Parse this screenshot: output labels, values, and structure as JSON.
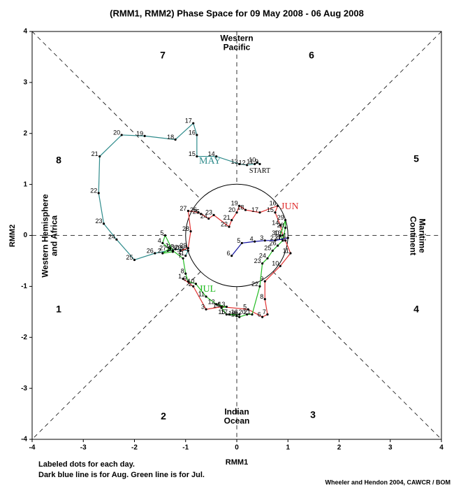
{
  "chart_data": {
    "type": "phase",
    "title": "(RMM1, RMM2) Phase Space for 09 May 2008 - 06 Aug 2008",
    "xlabel": "RMM1",
    "ylabel": "RMM2",
    "xlim": [
      -4,
      4
    ],
    "ylim": [
      -4,
      4
    ],
    "xticks": [
      -4,
      -3,
      -2,
      -1,
      0,
      1,
      2,
      3,
      4
    ],
    "yticks": [
      -4,
      -3,
      -2,
      -1,
      0,
      1,
      2,
      3,
      4
    ],
    "phases": [
      1,
      2,
      3,
      4,
      5,
      6,
      7,
      8
    ],
    "regions": [
      [
        "Western",
        "Pacific"
      ],
      [
        "Indian",
        "Ocean"
      ],
      [
        "Western Hemisphere",
        "and Africa"
      ],
      [
        "Maritime",
        "Continent"
      ]
    ],
    "start_label": "START",
    "series": [
      {
        "name": "MAY",
        "color": "#2e8b8b",
        "days": [
          9,
          10,
          11,
          12,
          13,
          14,
          15,
          16,
          17,
          18,
          19,
          20,
          21,
          22,
          23,
          24,
          25,
          26,
          27,
          28,
          29,
          30,
          31
        ],
        "x": [
          0.45,
          0.4,
          0.35,
          0.2,
          0.05,
          -0.4,
          -0.78,
          -0.78,
          -0.85,
          -1.2,
          -1.8,
          -2.25,
          -2.68,
          -2.7,
          -2.6,
          -2.35,
          -2.0,
          -1.6,
          -1.35,
          -1.2,
          -1.05,
          -0.95,
          -1.0
        ],
        "y": [
          1.4,
          1.43,
          1.4,
          1.38,
          1.4,
          1.55,
          1.55,
          1.97,
          2.2,
          1.88,
          1.95,
          1.97,
          1.55,
          0.83,
          0.23,
          -0.08,
          -0.48,
          -0.35,
          -0.3,
          -0.27,
          -0.28,
          -0.3,
          -0.4
        ]
      },
      {
        "name": "JUN",
        "color": "#e03030",
        "days": [
          1,
          2,
          3,
          4,
          5,
          6,
          7,
          8,
          9,
          10,
          11,
          12,
          13,
          14,
          15,
          16,
          17,
          18,
          19,
          20,
          21,
          22,
          23,
          24,
          25,
          26,
          27,
          28,
          29,
          30
        ],
        "x": [
          -1.05,
          -0.85,
          -0.6,
          -0.3,
          0.22,
          0.5,
          0.6,
          0.55,
          0.55,
          0.85,
          1.05,
          0.95,
          0.9,
          0.85,
          0.75,
          0.8,
          0.45,
          0.17,
          0.05,
          0.0,
          -0.1,
          -0.15,
          -0.45,
          -0.55,
          -0.7,
          -0.75,
          -0.95,
          -0.9,
          -0.95,
          -1.1
        ],
        "y": [
          -0.85,
          -1.0,
          -1.45,
          -1.4,
          -1.45,
          -1.6,
          -1.55,
          -1.25,
          -0.9,
          -0.6,
          -0.35,
          -0.1,
          0.0,
          0.2,
          0.45,
          0.58,
          0.45,
          0.5,
          0.58,
          0.45,
          0.3,
          0.17,
          0.4,
          0.33,
          0.42,
          0.45,
          0.48,
          0.08,
          -0.25,
          -0.3
        ]
      },
      {
        "name": "JUL",
        "color": "#22bb22",
        "days": [
          1,
          2,
          3,
          4,
          5,
          6,
          7,
          8,
          9,
          10,
          11,
          12,
          13,
          14,
          15,
          16,
          17,
          18,
          19,
          20,
          21,
          22,
          23,
          24,
          25,
          26,
          27,
          28,
          29,
          30,
          31
        ],
        "x": [
          -1.3,
          -1.45,
          -1.25,
          -1.45,
          -1.4,
          -1.25,
          -1.05,
          -1.0,
          -0.95,
          -0.8,
          -0.6,
          -0.4,
          -0.2,
          -0.3,
          -0.2,
          0.05,
          -0.15,
          0.0,
          0.05,
          0.2,
          0.3,
          0.45,
          0.5,
          0.6,
          0.7,
          0.8,
          0.9,
          0.95,
          0.95,
          0.85,
          0.9
        ],
        "y": [
          -0.25,
          -0.35,
          -0.32,
          -0.15,
          0.0,
          -0.3,
          -0.45,
          -0.75,
          -0.9,
          -0.95,
          -1.2,
          -1.35,
          -1.4,
          -1.42,
          -1.55,
          -1.55,
          -1.55,
          -1.58,
          -1.6,
          -1.55,
          -1.55,
          -1.0,
          -0.55,
          -0.45,
          -0.3,
          -0.2,
          -0.1,
          0.15,
          0.3,
          0.0,
          -0.1
        ]
      },
      {
        "color": "#1010a0",
        "days": [
          1,
          2,
          3,
          4,
          5,
          6
        ],
        "x": [
          1.0,
          0.75,
          0.55,
          0.35,
          0.1,
          -0.1
        ],
        "y": [
          -0.05,
          -0.1,
          -0.1,
          -0.12,
          -0.15,
          -0.4
        ]
      }
    ],
    "notes": [
      "Labeled dots for each day.",
      "Dark blue line is for Aug. Green line is for Jul."
    ],
    "credit": "Wheeler and Hendon 2004, CAWCR / BOM"
  }
}
